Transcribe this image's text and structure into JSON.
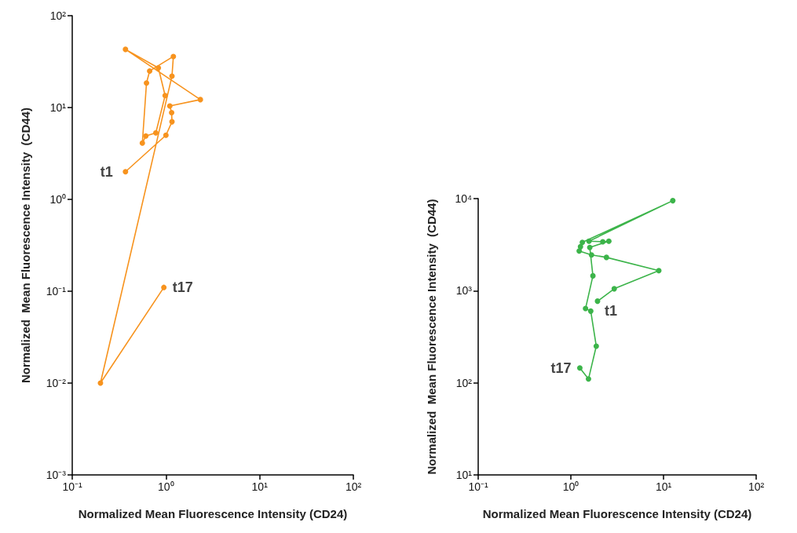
{
  "chart_data": [
    {
      "type": "line",
      "xlabel": "Normalized Mean Fluorescence Intensity (CD24)",
      "ylabel": "Normalized  Mean Fluorescence Intensity  (CD44)",
      "log": "xy",
      "marker": "circle",
      "line_style": "solid",
      "xlim": [
        0.1,
        100
      ],
      "xticks": [
        {
          "value": 0.1,
          "label": "10⁻¹"
        },
        {
          "value": 1,
          "label": "10⁰"
        },
        {
          "value": 10,
          "label": "10¹"
        },
        {
          "value": 100,
          "label": "10²"
        }
      ],
      "ylim": [
        0.001,
        100
      ],
      "yticks": [
        {
          "value": 0.001,
          "label": "10⁻³"
        },
        {
          "value": 0.01,
          "label": "10⁻²"
        },
        {
          "value": 0.1,
          "label": "10⁻¹"
        },
        {
          "value": 1,
          "label": "10⁰"
        },
        {
          "value": 10,
          "label": "10¹"
        },
        {
          "value": 100,
          "label": "10²"
        }
      ],
      "series": [
        {
          "color": "#f7931e",
          "x": [
            0.37,
            1.0,
            1.16,
            1.15,
            1.1,
            2.33,
            0.37,
            0.83,
            0.98,
            0.78,
            0.61,
            0.56,
            0.62,
            0.67,
            1.2,
            1.16,
            0.2,
            0.95
          ],
          "values": [
            2.0,
            5.0,
            7.0,
            8.8,
            10.4,
            12.2,
            43,
            27,
            13.5,
            5.3,
            4.9,
            4.1,
            18.5,
            25,
            36,
            22,
            0.01,
            0.11
          ]
        }
      ],
      "annotations": [
        {
          "text": "t1",
          "x": 0.37,
          "y": 2.0
        },
        {
          "text": "t17",
          "x": 0.95,
          "y": 0.11
        }
      ]
    },
    {
      "type": "line",
      "xlabel": "Normalized Mean Fluorescence Intensity (CD24)",
      "ylabel": "Normalized  Mean Fluorescence Intensity  (CD44)",
      "log": "xy",
      "marker": "circle",
      "line_style": "solid",
      "xlim": [
        0.1,
        100
      ],
      "xticks": [
        {
          "value": 0.1,
          "label": "10⁻¹"
        },
        {
          "value": 1,
          "label": "10⁰"
        },
        {
          "value": 10,
          "label": "10¹"
        },
        {
          "value": 100,
          "label": "10²"
        }
      ],
      "ylim": [
        10,
        10000
      ],
      "yticks": [
        {
          "value": 10,
          "label": "10¹"
        },
        {
          "value": 100,
          "label": "10²"
        },
        {
          "value": 1000,
          "label": "10³"
        },
        {
          "value": 10000,
          "label": "10⁴"
        }
      ],
      "series": [
        {
          "color": "#3cb44a",
          "x": [
            1.94,
            2.94,
            8.9,
            2.42,
            1.67,
            1.23,
            1.27,
            1.33,
            12.6,
            1.57,
            2.21,
            2.57,
            1.6,
            1.73,
            1.44,
            1.64,
            1.88,
            1.55,
            1.25
          ],
          "values": [
            770,
            1050,
            1650,
            2300,
            2450,
            2700,
            3000,
            3350,
            9500,
            3450,
            3400,
            3450,
            2950,
            1450,
            640,
            600,
            250,
            110,
            145
          ]
        }
      ],
      "annotations": [
        {
          "text": "t1",
          "x": 1.94,
          "y": 770
        },
        {
          "text": "t17",
          "x": 1.25,
          "y": 145
        }
      ]
    }
  ]
}
